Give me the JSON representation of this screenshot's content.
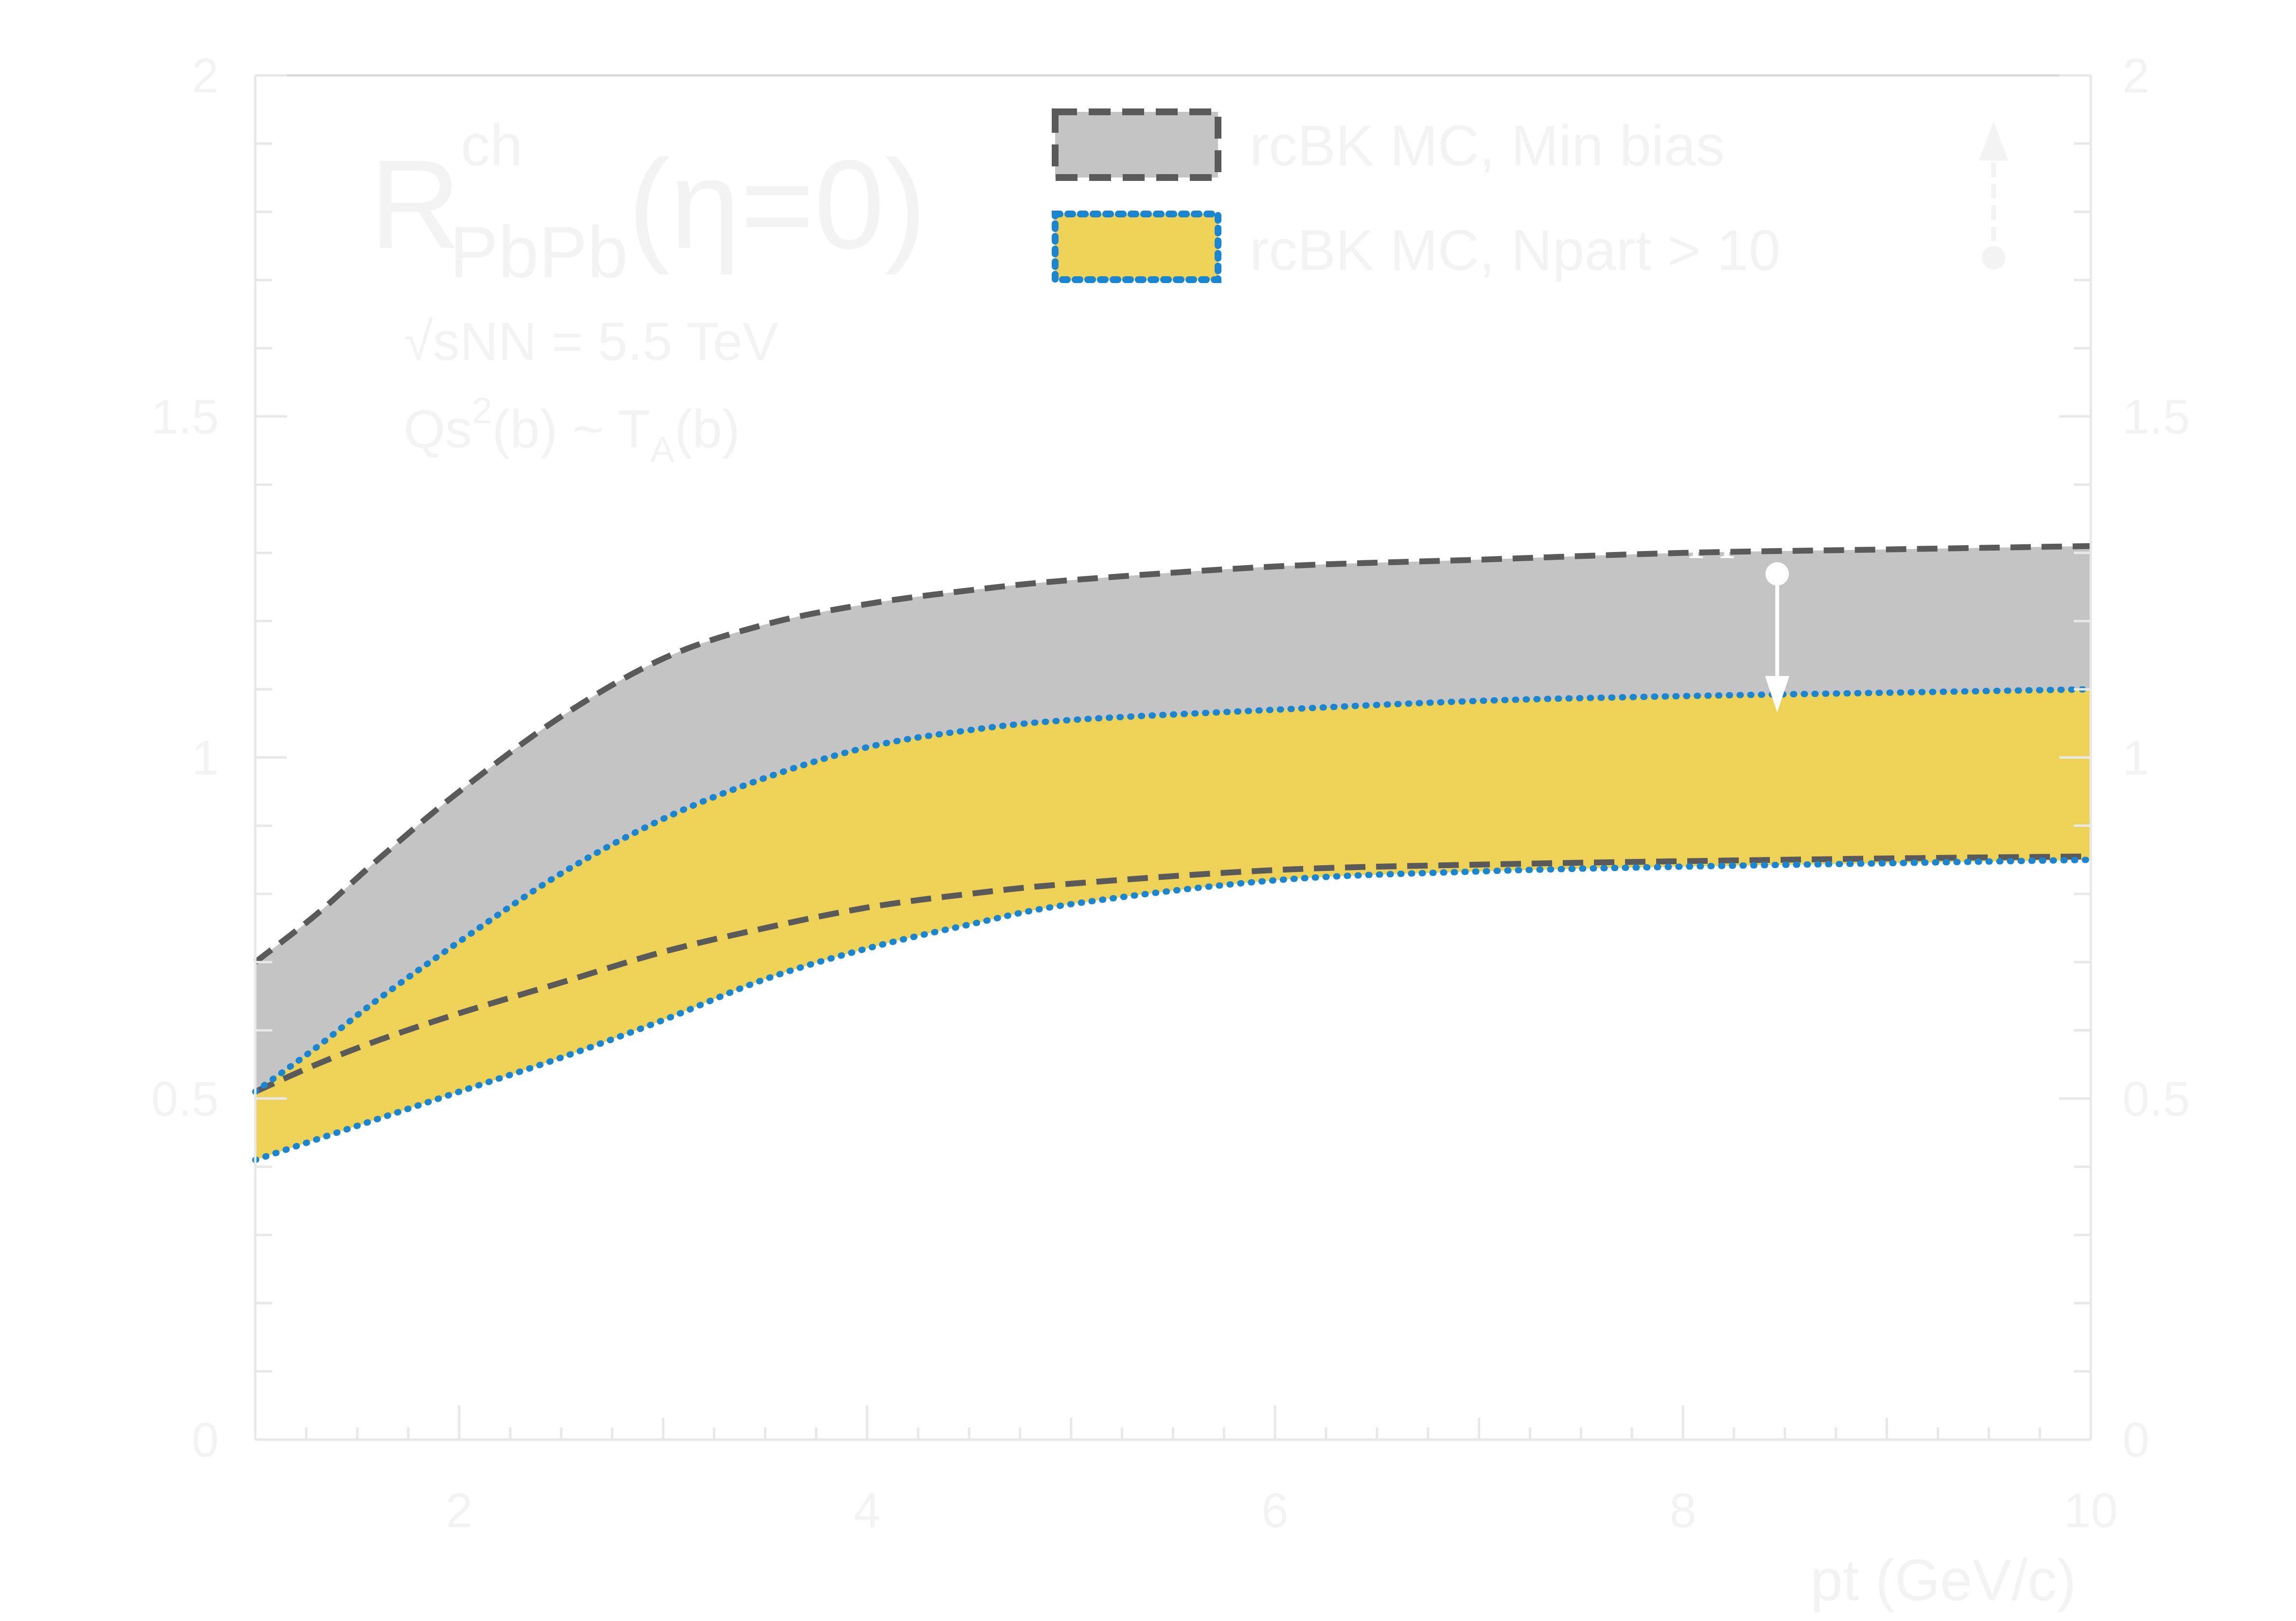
{
  "chart_data": {
    "type": "area",
    "xlabel": "pt (GeV/c)",
    "ylabel_main": "R",
    "ylabel_sup": "ch",
    "ylabel_sub": "PbPb",
    "ylabel_suffix": "(η=0)",
    "xlim": [
      1,
      10
    ],
    "ylim": [
      0,
      2
    ],
    "x_ticks": [
      2,
      4,
      6,
      8,
      10
    ],
    "x_tick_labels": [
      "2",
      "4",
      "6",
      "8",
      "10"
    ],
    "y_ticks": [
      0,
      0.5,
      1,
      1.5,
      2
    ],
    "y_tick_labels": [
      "0",
      "0.5",
      "1",
      "1.5",
      "2"
    ],
    "y_tick_labels_right": [
      "0",
      "0.5",
      "1",
      "1.5",
      "2"
    ],
    "annotations": {
      "energy_label": "√sNN = 5.5 TeV",
      "qs_main": "Qs",
      "qs_sup": "2",
      "qs_mid": "(b) ~ T",
      "qs_sub": "A",
      "qs_end": "(b)",
      "suppression": "Suppression"
    },
    "legend": {
      "position": "top-right",
      "entries": [
        {
          "label": "rcBK MC, Min bias",
          "fill": "#c4c4c4",
          "line": "#5a5a5a",
          "style": "dashed"
        },
        {
          "label": "rcBK MC, Npart > 10",
          "fill": "#eed157",
          "line": "#1a86d2",
          "style": "dotted"
        }
      ]
    },
    "series": [
      {
        "name": "rcBK MC, Min bias",
        "fill": "#c4c4c4",
        "line": "#5a5a5a",
        "style": "dashed",
        "x": [
          1,
          1.3,
          1.6,
          2,
          2.5,
          3,
          3.5,
          4,
          4.5,
          5,
          6,
          7,
          8,
          9,
          10
        ],
        "upper": [
          0.7,
          0.77,
          0.85,
          0.95,
          1.06,
          1.145,
          1.195,
          1.225,
          1.245,
          1.26,
          1.28,
          1.29,
          1.3,
          1.305,
          1.31
        ],
        "lower": [
          0.51,
          0.55,
          0.585,
          0.625,
          0.67,
          0.715,
          0.75,
          0.78,
          0.8,
          0.815,
          0.835,
          0.843,
          0.848,
          0.852,
          0.855
        ]
      },
      {
        "name": "rcBK MC, Npart > 10",
        "fill": "#eed157",
        "line": "#1a86d2",
        "style": "dotted",
        "x": [
          1,
          1.3,
          1.6,
          2,
          2.5,
          3,
          3.5,
          4,
          4.5,
          5,
          6,
          7,
          8,
          9,
          10
        ],
        "upper": [
          0.51,
          0.575,
          0.645,
          0.73,
          0.83,
          0.91,
          0.97,
          1.015,
          1.04,
          1.055,
          1.07,
          1.083,
          1.09,
          1.095,
          1.1
        ],
        "lower": [
          0.41,
          0.44,
          0.47,
          0.51,
          0.56,
          0.615,
          0.675,
          0.72,
          0.755,
          0.785,
          0.82,
          0.833,
          0.84,
          0.845,
          0.85
        ]
      }
    ],
    "colors": {
      "background": "#ffffff",
      "axis": "#e8e8e8",
      "annotation_text": "#f3f3f3"
    }
  }
}
